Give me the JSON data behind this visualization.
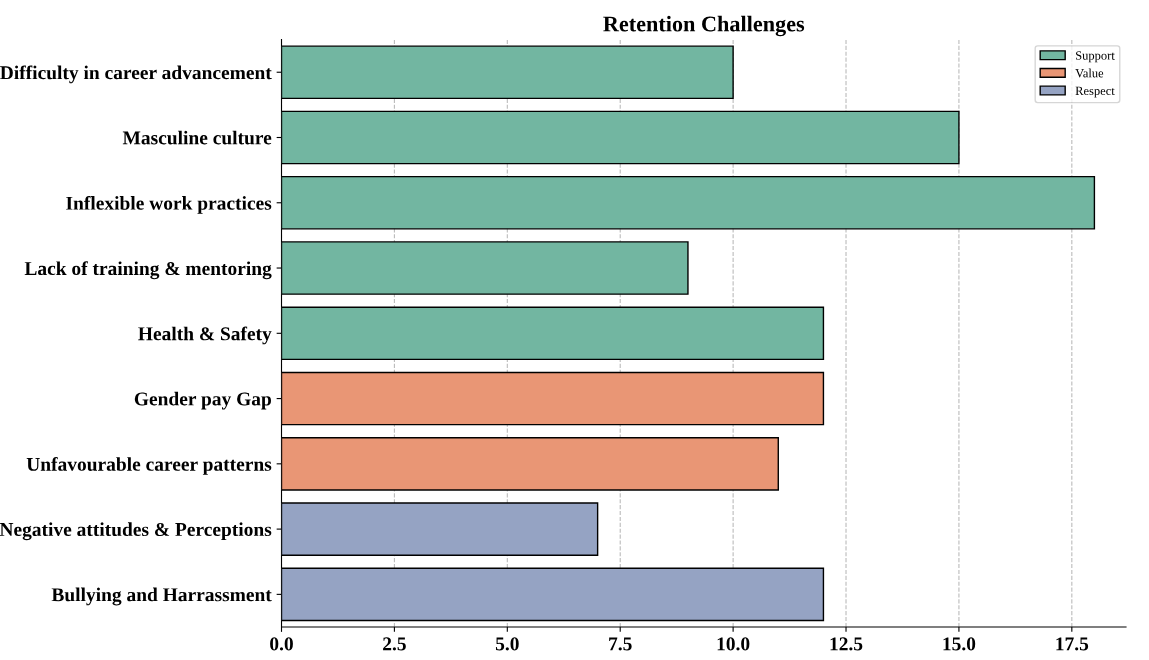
{
  "chart_data": {
    "type": "bar",
    "orientation": "horizontal",
    "title": "Retention Challenges",
    "categories": [
      "Difficulty in career advancement",
      "Masculine culture",
      "Inflexible work practices",
      "Lack of training & mentoring",
      "Health & Safety",
      "Gender pay Gap",
      "Unfavourable career patterns",
      "Negative attitudes & Perceptions",
      "Bullying and Harrassment"
    ],
    "series": [
      {
        "name": "Support",
        "color": "#72b6a1",
        "values": [
          10,
          15,
          18,
          9,
          12,
          null,
          null,
          null,
          null
        ]
      },
      {
        "name": "Value",
        "color": "#e99675",
        "values": [
          null,
          null,
          null,
          null,
          null,
          12,
          11,
          null,
          null
        ]
      },
      {
        "name": "Respect",
        "color": "#95a3c3",
        "values": [
          null,
          null,
          null,
          null,
          null,
          null,
          null,
          7,
          12
        ]
      }
    ],
    "xlim": [
      0,
      18.7
    ],
    "xticks": [
      {
        "value": 0,
        "label": "0.0"
      },
      2.5,
      {
        "value": 5,
        "label": "5.0"
      },
      7.5,
      {
        "value": 10,
        "label": "10.0"
      },
      12.5,
      {
        "value": 15,
        "label": "15.0"
      },
      17.5
    ],
    "grid": "x",
    "legend": "top right"
  }
}
